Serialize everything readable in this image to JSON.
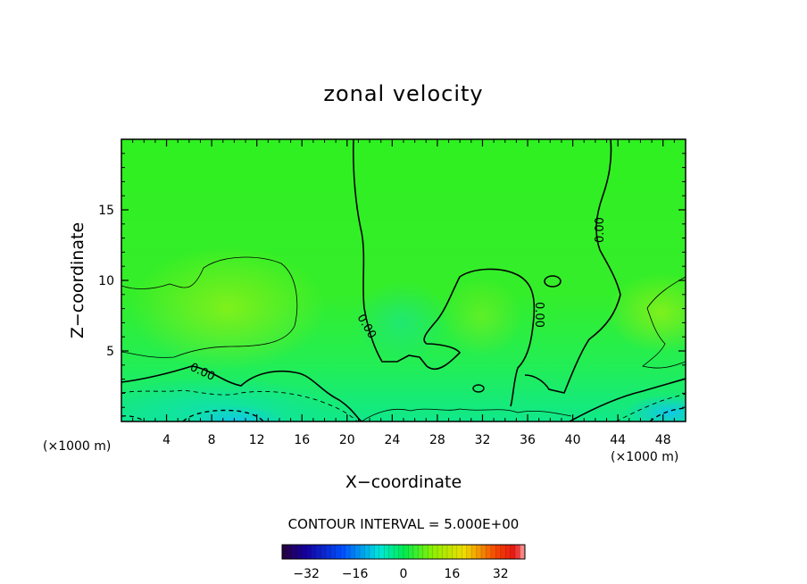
{
  "chart_data": {
    "type": "heatmap",
    "title": "zonal velocity",
    "xlabel": "X−coordinate",
    "ylabel": "Z−coordinate",
    "x_unit_left": "(×1000 m)",
    "x_unit_right": "(×1000 m)",
    "xlim": [
      0,
      50
    ],
    "ylim": [
      0,
      20
    ],
    "x_ticks": [
      4,
      8,
      12,
      16,
      20,
      24,
      28,
      32,
      36,
      40,
      44,
      48
    ],
    "y_ticks": [
      5,
      10,
      15
    ],
    "contour_interval_text": "CONTOUR INTERVAL = 5.000E+00",
    "contour_labels": [
      "0.00",
      "0.00",
      "0.00",
      "0.00",
      "0.00"
    ],
    "colorbar": {
      "range": [
        -40,
        40
      ],
      "ticks": [
        -32,
        -16,
        0,
        16,
        32
      ],
      "tick_labels": [
        "−32",
        "−16",
        "0",
        "16",
        "32"
      ],
      "colormap": "rainbow"
    },
    "field_summary": {
      "background_value": 0,
      "positive_region": {
        "x": [
          0,
          14
        ],
        "z": [
          5,
          10
        ],
        "approx_max": 5
      },
      "negative_region": {
        "x": [
          0,
          20
        ],
        "z": [
          0,
          3
        ],
        "approx_min": -15
      }
    }
  }
}
